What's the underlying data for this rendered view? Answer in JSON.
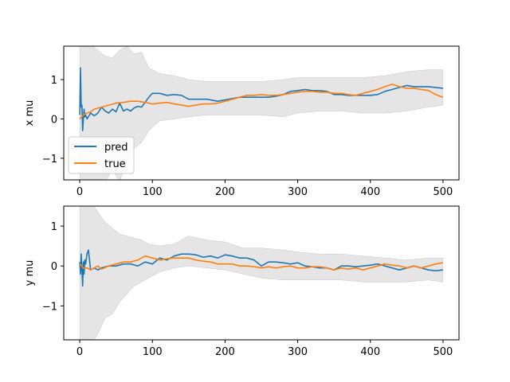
{
  "chart_data": [
    {
      "type": "line",
      "ylabel": "x mu",
      "xlabel": "",
      "xlim": [
        -22,
        522
      ],
      "ylim": [
        -1.55,
        1.85
      ],
      "xticks": [
        0,
        100,
        200,
        300,
        400,
        500
      ],
      "yticks": [
        -1,
        0,
        1
      ],
      "legend": {
        "position": "lower-left",
        "entries": [
          "pred",
          "true"
        ]
      },
      "band": {
        "x": [
          0,
          3,
          5,
          8,
          12,
          18,
          25,
          35,
          45,
          55,
          65,
          75,
          85,
          95,
          110,
          130,
          150,
          175,
          200,
          225,
          250,
          280,
          300,
          330,
          360,
          390,
          420,
          450,
          480,
          500
        ],
        "upper": [
          1.9,
          1.9,
          1.9,
          1.9,
          1.9,
          1.85,
          1.75,
          1.6,
          1.55,
          1.75,
          1.85,
          1.65,
          1.7,
          1.3,
          1.15,
          1.1,
          1.0,
          0.95,
          0.95,
          0.95,
          0.95,
          1.0,
          1.05,
          1.05,
          1.05,
          1.05,
          1.1,
          1.2,
          1.25,
          1.25
        ],
        "lower": [
          -1.6,
          -1.6,
          -1.6,
          -1.6,
          -1.6,
          -1.6,
          -1.6,
          -1.6,
          -1.3,
          -1.6,
          -1.0,
          -0.75,
          -0.6,
          -0.3,
          -0.05,
          0.0,
          0.05,
          0.1,
          0.1,
          0.1,
          0.1,
          0.05,
          0.15,
          0.2,
          0.2,
          0.15,
          0.15,
          0.2,
          0.3,
          0.35
        ]
      },
      "series": [
        {
          "name": "pred",
          "color": "#1f77b4",
          "x": [
            0,
            1,
            2,
            3,
            4,
            5,
            6,
            7,
            8,
            10,
            15,
            20,
            25,
            30,
            35,
            40,
            45,
            50,
            55,
            60,
            65,
            70,
            75,
            80,
            85,
            90,
            95,
            100,
            110,
            120,
            130,
            140,
            150,
            160,
            175,
            190,
            205,
            220,
            235,
            250,
            260,
            270,
            280,
            290,
            300,
            310,
            320,
            330,
            340,
            350,
            360,
            370,
            380,
            390,
            400,
            410,
            420,
            430,
            440,
            450,
            460,
            470,
            480,
            490,
            500
          ],
          "y": [
            0.1,
            1.3,
            0.3,
            0.35,
            -0.3,
            0.0,
            0.25,
            0.05,
            0.1,
            0.0,
            0.15,
            0.08,
            0.15,
            0.3,
            0.2,
            0.15,
            0.25,
            0.18,
            0.4,
            0.2,
            0.25,
            0.2,
            0.28,
            0.32,
            0.3,
            0.42,
            0.55,
            0.65,
            0.65,
            0.6,
            0.62,
            0.6,
            0.5,
            0.5,
            0.5,
            0.45,
            0.5,
            0.55,
            0.55,
            0.55,
            0.55,
            0.58,
            0.62,
            0.7,
            0.72,
            0.75,
            0.72,
            0.72,
            0.7,
            0.62,
            0.62,
            0.6,
            0.6,
            0.6,
            0.6,
            0.62,
            0.7,
            0.75,
            0.8,
            0.85,
            0.82,
            0.82,
            0.82,
            0.8,
            0.78
          ]
        },
        {
          "name": "true",
          "color": "#ff7f0e",
          "x": [
            0,
            5,
            10,
            15,
            20,
            30,
            40,
            50,
            60,
            70,
            80,
            90,
            100,
            110,
            120,
            130,
            140,
            150,
            160,
            170,
            180,
            190,
            200,
            210,
            220,
            230,
            240,
            250,
            260,
            270,
            280,
            290,
            300,
            310,
            320,
            330,
            340,
            350,
            360,
            370,
            380,
            390,
            400,
            410,
            420,
            430,
            440,
            450,
            460,
            470,
            480,
            490,
            500
          ],
          "y": [
            0.0,
            0.1,
            0.15,
            0.18,
            0.25,
            0.3,
            0.35,
            0.4,
            0.42,
            0.45,
            0.45,
            0.42,
            0.38,
            0.4,
            0.42,
            0.38,
            0.35,
            0.32,
            0.35,
            0.38,
            0.38,
            0.4,
            0.45,
            0.5,
            0.55,
            0.6,
            0.6,
            0.62,
            0.6,
            0.6,
            0.62,
            0.65,
            0.68,
            0.7,
            0.7,
            0.68,
            0.68,
            0.65,
            0.65,
            0.62,
            0.6,
            0.65,
            0.7,
            0.75,
            0.82,
            0.88,
            0.82,
            0.78,
            0.78,
            0.75,
            0.72,
            0.62,
            0.55
          ]
        }
      ]
    },
    {
      "type": "line",
      "ylabel": "y mu",
      "xlabel": "",
      "xlim": [
        -22,
        522
      ],
      "ylim": [
        -1.85,
        1.5
      ],
      "xticks": [
        0,
        100,
        200,
        300,
        400,
        500
      ],
      "yticks": [
        -1,
        0,
        1
      ],
      "band": {
        "x": [
          0,
          3,
          5,
          8,
          12,
          18,
          25,
          35,
          45,
          55,
          65,
          75,
          85,
          95,
          110,
          130,
          150,
          175,
          200,
          225,
          250,
          280,
          300,
          330,
          360,
          390,
          420,
          450,
          480,
          500
        ],
        "upper": [
          1.6,
          1.6,
          1.6,
          1.6,
          1.6,
          1.55,
          1.35,
          1.1,
          0.95,
          0.8,
          0.75,
          0.7,
          0.65,
          0.55,
          0.5,
          0.55,
          0.75,
          0.65,
          0.6,
          0.45,
          0.45,
          0.4,
          0.35,
          0.3,
          0.3,
          0.25,
          0.2,
          0.15,
          0.2,
          0.2
        ],
        "lower": [
          -1.9,
          -1.9,
          -1.9,
          -1.9,
          -1.9,
          -1.9,
          -1.7,
          -1.3,
          -1.2,
          -0.9,
          -0.7,
          -0.5,
          -0.4,
          -0.3,
          -0.15,
          -0.05,
          0.0,
          -0.05,
          -0.1,
          -0.2,
          -0.3,
          -0.35,
          -0.35,
          -0.35,
          -0.35,
          -0.4,
          -0.4,
          -0.4,
          -0.35,
          -0.4
        ]
      },
      "series": [
        {
          "name": "pred",
          "color": "#1f77b4",
          "x": [
            0,
            1,
            2,
            3,
            4,
            5,
            6,
            7,
            8,
            10,
            12,
            15,
            20,
            25,
            30,
            40,
            50,
            60,
            70,
            80,
            90,
            100,
            110,
            120,
            130,
            140,
            150,
            160,
            170,
            180,
            190,
            200,
            210,
            220,
            230,
            240,
            250,
            260,
            270,
            280,
            290,
            300,
            310,
            320,
            330,
            340,
            350,
            360,
            370,
            380,
            390,
            400,
            410,
            420,
            430,
            440,
            450,
            460,
            470,
            480,
            490,
            500
          ],
          "y": [
            0.1,
            -0.2,
            0.3,
            -0.1,
            -0.5,
            0.1,
            -0.2,
            0.15,
            0.05,
            0.3,
            0.4,
            -0.1,
            -0.05,
            -0.1,
            -0.05,
            0.0,
            0.0,
            0.05,
            0.05,
            0.0,
            0.1,
            0.05,
            0.2,
            0.15,
            0.25,
            0.3,
            0.3,
            0.28,
            0.22,
            0.25,
            0.2,
            0.28,
            0.25,
            0.2,
            0.2,
            0.15,
            0.0,
            0.1,
            0.1,
            0.08,
            0.05,
            0.08,
            0.0,
            -0.02,
            -0.05,
            -0.05,
            -0.1,
            0.0,
            0.0,
            -0.02,
            0.0,
            0.02,
            0.05,
            0.0,
            -0.05,
            -0.1,
            -0.05,
            0.0,
            -0.05,
            -0.1,
            -0.12,
            -0.1
          ]
        },
        {
          "name": "true",
          "color": "#ff7f0e",
          "x": [
            0,
            5,
            10,
            15,
            20,
            25,
            30,
            40,
            50,
            60,
            70,
            80,
            90,
            100,
            110,
            120,
            130,
            140,
            150,
            160,
            170,
            180,
            190,
            200,
            210,
            220,
            230,
            240,
            250,
            260,
            270,
            280,
            290,
            300,
            310,
            320,
            330,
            340,
            350,
            360,
            370,
            380,
            390,
            400,
            410,
            420,
            430,
            440,
            450,
            460,
            470,
            480,
            490,
            500
          ],
          "y": [
            0.05,
            -0.05,
            -0.05,
            -0.1,
            -0.05,
            0.0,
            -0.08,
            0.0,
            0.05,
            0.1,
            0.1,
            0.15,
            0.25,
            0.2,
            0.15,
            0.18,
            0.2,
            0.2,
            0.2,
            0.15,
            0.12,
            0.1,
            0.05,
            0.05,
            0.05,
            0.0,
            0.0,
            -0.02,
            -0.05,
            -0.02,
            -0.05,
            -0.02,
            0.0,
            -0.05,
            -0.05,
            -0.02,
            -0.02,
            -0.05,
            -0.1,
            -0.05,
            -0.08,
            -0.05,
            -0.1,
            -0.05,
            0.0,
            0.05,
            0.02,
            0.0,
            -0.05,
            0.0,
            -0.05,
            0.0,
            0.05,
            0.08
          ]
        }
      ]
    }
  ]
}
